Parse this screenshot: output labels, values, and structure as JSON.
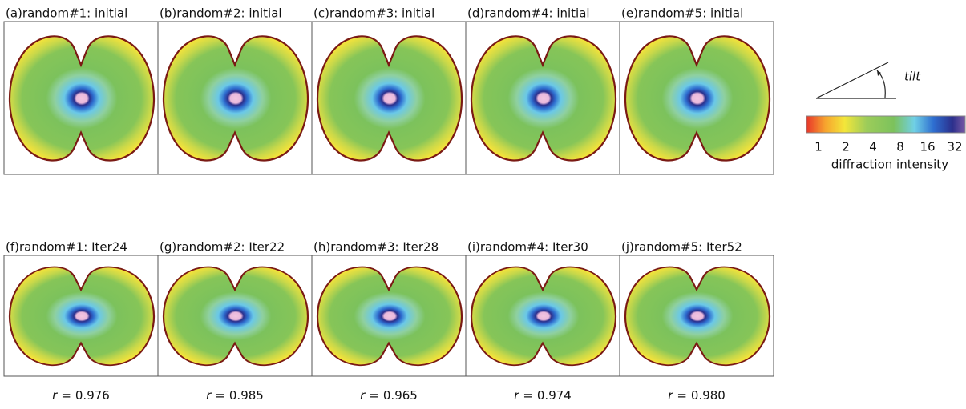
{
  "panels": [
    {
      "title": "(a)random#1: initial"
    },
    {
      "title": "(b)random#2: initial"
    },
    {
      "title": "(c)random#3: initial"
    },
    {
      "title": "(d)random#4: initial"
    },
    {
      "title": "(e)random#5: initial"
    },
    {
      "title": "(f)random#1: Iter24",
      "r": "0.976"
    },
    {
      "title": "(g)random#2: Iter22",
      "r": "0.985"
    },
    {
      "title": "(h)random#3: Iter28",
      "r": "0.965"
    },
    {
      "title": "(i)random#4: Iter30",
      "r": "0.974"
    },
    {
      "title": "(j)random#5: Iter52",
      "r": "0.980"
    }
  ],
  "correlation": {
    "symbol": "r",
    "relation": "="
  },
  "colorbar": {
    "ticks": [
      1,
      2,
      4,
      8,
      16,
      32
    ],
    "label": "diffraction intensity"
  },
  "tilt_label": "tilt"
}
